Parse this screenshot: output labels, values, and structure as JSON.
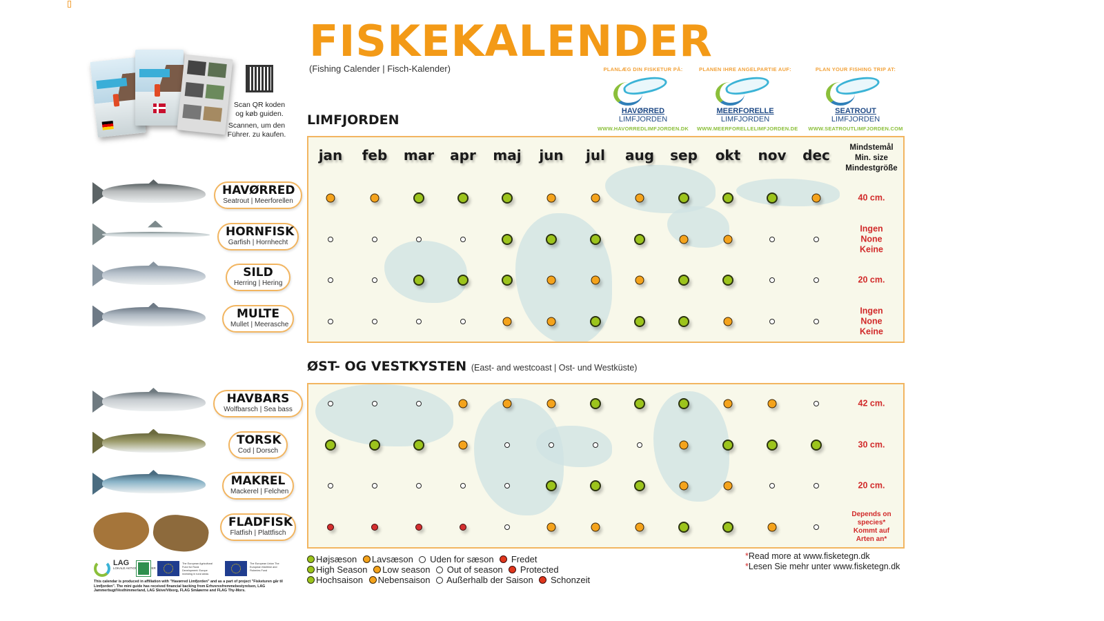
{
  "page": {
    "title": "FISKEKALENDER",
    "subtitle": "(Fishing Calender | Fisch-Kalender)"
  },
  "guide": {
    "qr_text_da_1": "Scan QR koden",
    "qr_text_da_2": "og køb guiden.",
    "qr_text_de_1": "Scannen, um den",
    "qr_text_de_2": "Führer. zu kaufen.",
    "icons": [
      "guide-booklet-de",
      "guide-booklet-dk",
      "guide-booklet-maps",
      "qr-code-icon",
      "german-flag-icon",
      "danish-flag-icon"
    ]
  },
  "promos": [
    {
      "heading": "PLANLÆG DIN FISKETUR PÅ:",
      "name": "HAVØRRED",
      "sub": "LIMFJORDEN",
      "url": "WWW.HAVORREDLIMFJORDEN.DK"
    },
    {
      "heading": "PLANEN IHRE ANGELPARTIE AUF:",
      "name": "MEERFORELLE",
      "sub": "LIMFJORDEN",
      "url": "WWW.MEERFORELLELIMFJORDEN.DE"
    },
    {
      "heading": "PLAN YOUR FISHING TRIP AT:",
      "name": "SEATROUT",
      "sub": "LIMFJORDEN",
      "url": "WWW.SEATROUTLIMFJORDEN.COM"
    }
  ],
  "months": [
    "jan",
    "feb",
    "mar",
    "apr",
    "maj",
    "jun",
    "jul",
    "aug",
    "sep",
    "okt",
    "nov",
    "dec"
  ],
  "minsize_header": [
    "Mindstemål",
    "Min. size",
    "Mindestgröße"
  ],
  "colors": {
    "high_season": "#9cc41c",
    "low_season": "#f4a31c",
    "protected": "#d32f2f",
    "title_orange": "#f39a17",
    "panel_border": "#f2b560",
    "minsize_red": "#d12a2a"
  },
  "sections": [
    {
      "title": "LIMFJORDEN",
      "paren": "",
      "species": [
        {
          "name": "HAVØRRED",
          "sub": "Seatrout | Meerforellen",
          "seasons": [
            "low",
            "low",
            "high",
            "high",
            "high",
            "low",
            "low",
            "low",
            "high",
            "high",
            "high",
            "low"
          ],
          "minsize": [
            "40 cm."
          ]
        },
        {
          "name": "HORNFISK",
          "sub": "Garfish | Hornhecht",
          "seasons": [
            "out",
            "out",
            "out",
            "out",
            "high",
            "high",
            "high",
            "high",
            "low",
            "low",
            "out",
            "out"
          ],
          "minsize": [
            "Ingen",
            "None",
            "Keine"
          ]
        },
        {
          "name": "SILD",
          "sub": "Herring | Hering",
          "seasons": [
            "out",
            "out",
            "high",
            "high",
            "high",
            "low",
            "low",
            "low",
            "high",
            "high",
            "out",
            "out"
          ],
          "minsize": [
            "20 cm."
          ]
        },
        {
          "name": "MULTE",
          "sub": "Mullet | Meerasche",
          "seasons": [
            "out",
            "out",
            "out",
            "out",
            "low",
            "low",
            "high",
            "high",
            "high",
            "low",
            "out",
            "out"
          ],
          "minsize": [
            "Ingen",
            "None",
            "Keine"
          ]
        }
      ]
    },
    {
      "title": "ØST- OG VESTKYSTEN",
      "paren": "(East- and westcoast | Ost- und Westküste)",
      "species": [
        {
          "name": "HAVBARS",
          "sub": "Wolfbarsch | Sea bass",
          "seasons": [
            "out",
            "out",
            "out",
            "low",
            "low",
            "low",
            "high",
            "high",
            "high",
            "low",
            "low",
            "out"
          ],
          "minsize": [
            "42 cm."
          ]
        },
        {
          "name": "TORSK",
          "sub": "Cod | Dorsch",
          "seasons": [
            "high",
            "high",
            "high",
            "low",
            "out",
            "out",
            "out",
            "out",
            "low",
            "high",
            "high",
            "high"
          ],
          "minsize": [
            "30 cm."
          ]
        },
        {
          "name": "MAKREL",
          "sub": "Mackerel | Felchen",
          "seasons": [
            "out",
            "out",
            "out",
            "out",
            "out",
            "high",
            "high",
            "high",
            "low",
            "low",
            "out",
            "out"
          ],
          "minsize": [
            "20 cm."
          ]
        },
        {
          "name": "FLADFISK",
          "sub": "Flatfish | Plattfisch",
          "seasons": [
            "prot",
            "prot",
            "prot",
            "prot",
            "out",
            "low",
            "low",
            "low",
            "high",
            "high",
            "low",
            "out"
          ],
          "minsize": [
            "Depends on",
            "species*",
            "Kommt auf",
            "Arten an*"
          ]
        }
      ]
    }
  ],
  "legend": {
    "da": {
      "high": "Højsæson",
      "low": "Lavsæson",
      "out": "Uden for sæson",
      "prot": "Fredet"
    },
    "en": {
      "high": "High Season",
      "low": "Low season",
      "out": "Out of season",
      "prot": "Protected"
    },
    "de": {
      "high": "Hochsaison",
      "low": "Nebensaison",
      "out": "Außerhalb der Saison",
      "prot": "Schonzeit"
    }
  },
  "footnotes": {
    "en": "Read more at www.fisketegn.dk",
    "de": "Lesen Sie mehr unter www.fisketegn.dk"
  },
  "footer": {
    "lag_label": "LAG",
    "lag_small": "LOKALE AKTIONS GRUPPER",
    "eu_text_1": "The European Agricultural Fund for Rural Development: Europe investing in rural areas",
    "eu_text_2": "The European Union The European Maritime and Fisheries Fund",
    "note": "This calendar is produced in affiliation with \"Havørred Limfjorden\" and as a part of project \"Fisketuren går til Limfjorden\". The mini guide has received financial backing from Erhvervsfremmebestyrelsen, LAG Jammerbugt/Vesthimmerland, LAG Skive/Viborg, FLAG Småøerne and FLAG Thy-Mors."
  }
}
